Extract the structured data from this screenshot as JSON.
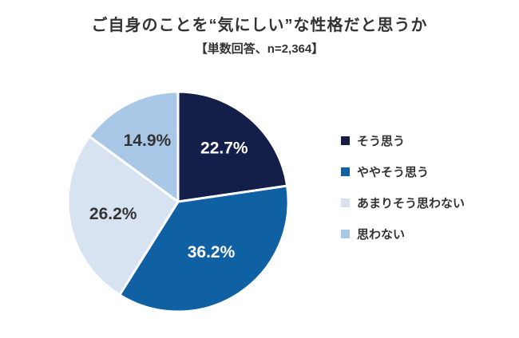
{
  "page": {
    "title": "ご自身のことを“気にしい”な性格だと思うか",
    "subtitle": "【単数回答、n=2,364】"
  },
  "chart_data": {
    "type": "pie",
    "title": "ご自身のことを“気にしい”な性格だと思うか",
    "subtitle": "【単数回答、n=2,364】",
    "sample_note": "単数回答、n=2,364",
    "n": 2364,
    "unit": "%",
    "categories": [
      "そう思う",
      "ややそう思う",
      "あまりそう思わない",
      "思わない"
    ],
    "values": [
      22.7,
      36.2,
      26.2,
      14.9
    ],
    "labels": [
      "22.7%",
      "36.2%",
      "26.2%",
      "14.9%"
    ],
    "colors": [
      "#131F48",
      "#1060A4",
      "#D7E3F1",
      "#A9C7E6"
    ],
    "label_colors": [
      "#FFFFFF",
      "#FFFFFF",
      "#333333",
      "#333333"
    ],
    "start_angle_deg": 0,
    "direction": "clockwise",
    "legend_position": "right",
    "background": "#FFFFFF"
  }
}
